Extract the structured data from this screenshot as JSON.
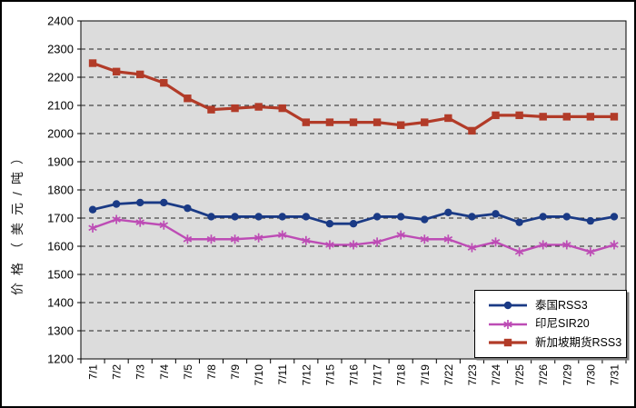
{
  "window": {
    "background": "#ffffff",
    "border_color": "#000000"
  },
  "chart_data": {
    "type": "line",
    "title": "",
    "xlabel": "",
    "ylabel": "价格（美元/吨）",
    "ylim": [
      1200,
      2400
    ],
    "ytick_interval": 100,
    "yticks": [
      2400,
      2300,
      2200,
      2100,
      2000,
      1900,
      1800,
      1700,
      1600,
      1500,
      1400,
      1300,
      1200
    ],
    "grid": "horizontal-dashed",
    "grid_color": "#222222",
    "plot_background": "#dcdcdc",
    "axis_color": "#000000",
    "legend_position": "inside-bottom-right",
    "categories": [
      "7/1",
      "7/2",
      "7/3",
      "7/4",
      "7/5",
      "7/8",
      "7/9",
      "7/10",
      "7/11",
      "7/12",
      "7/15",
      "7/16",
      "7/17",
      "7/18",
      "7/19",
      "7/22",
      "7/23",
      "7/24",
      "7/25",
      "7/26",
      "7/29",
      "7/30",
      "7/31"
    ],
    "series": [
      {
        "id": "thailand-rss3",
        "name": "泰国RSS3",
        "color": "#1a3a85",
        "marker": "circle",
        "values": [
          1730,
          1750,
          1755,
          1755,
          1735,
          1705,
          1705,
          1705,
          1705,
          1705,
          1680,
          1680,
          1705,
          1705,
          1695,
          1720,
          1705,
          1715,
          1685,
          1705,
          1705,
          1690,
          1705
        ]
      },
      {
        "id": "indonesia-sir20",
        "name": "印尼SIR20",
        "color": "#bd4cb5",
        "marker": "asterisk",
        "values": [
          1665,
          1695,
          1685,
          1675,
          1625,
          1625,
          1625,
          1630,
          1640,
          1620,
          1605,
          1605,
          1615,
          1640,
          1625,
          1625,
          1595,
          1615,
          1580,
          1605,
          1605,
          1580,
          1605
        ]
      },
      {
        "id": "singapore-futures-rss3",
        "name": "新加坡期货RSS3",
        "color": "#b23b28",
        "marker": "square",
        "values": [
          2250,
          2220,
          2210,
          2180,
          2125,
          2085,
          2090,
          2095,
          2090,
          2040,
          2040,
          2040,
          2040,
          2030,
          2040,
          2055,
          2010,
          2065,
          2065,
          2060,
          2060,
          2060,
          2060
        ]
      }
    ]
  }
}
